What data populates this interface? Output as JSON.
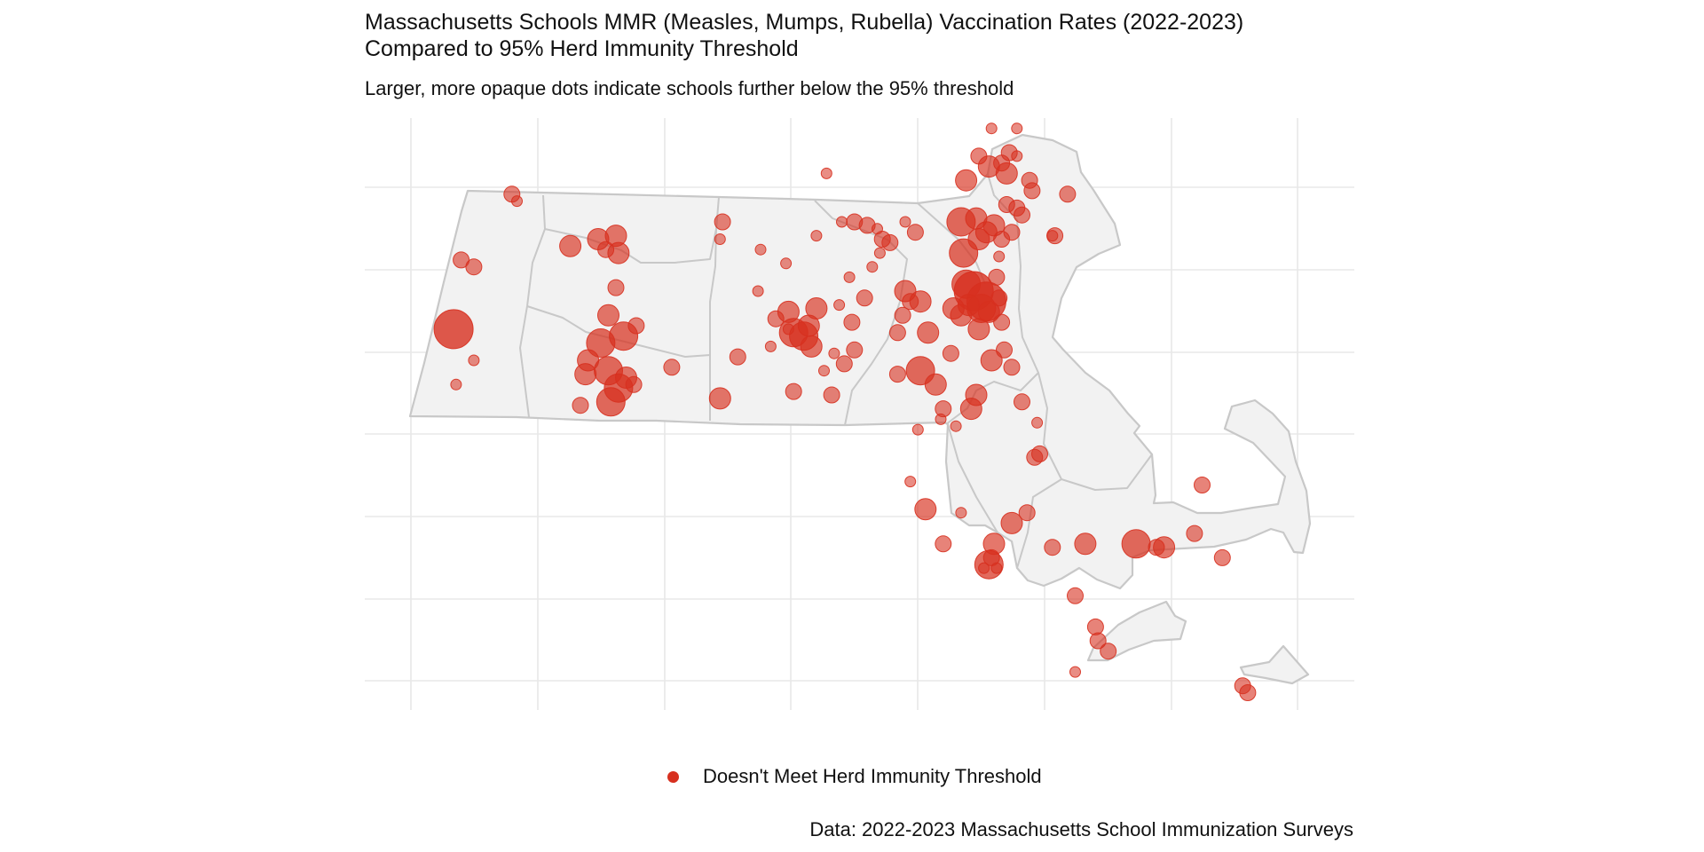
{
  "title": "Massachusetts Schools MMR (Measles, Mumps, Rubella) Vaccination Rates (2022-2023)\nCompared to 95% Herd Immunity Threshold",
  "subtitle": "Larger, more opaque dots indicate schools further below the 95% threshold",
  "caption": "Data: 2022-2023 Massachusetts School Immunization Surveys",
  "colors": {
    "point": "#d7301f",
    "land": "#f2f2f2",
    "border": "#c8c8c8",
    "grid": "#e8e8e8"
  },
  "chart_data": {
    "type": "scatter",
    "description_scope": "School locations (longitude, latitude) over a map of Massachusetts counties",
    "xlim": [
      -73.55,
      -69.65
    ],
    "ylim": [
      41.22,
      42.93
    ],
    "grid": true,
    "axes_labels_shown": false,
    "legend": {
      "position": "bottom",
      "entries": [
        "Doesn't Meet Herd Immunity Threshold"
      ]
    },
    "size_encodes": "distance below 95% threshold (1 = smallest, 5 = largest)",
    "points": [
      [
        -73.2,
        42.32,
        5
      ],
      [
        -73.12,
        42.23,
        1
      ],
      [
        -73.19,
        42.16,
        1
      ],
      [
        -73.17,
        42.52,
        2
      ],
      [
        -73.12,
        42.5,
        2
      ],
      [
        -72.97,
        42.71,
        2
      ],
      [
        -72.95,
        42.69,
        1
      ],
      [
        -72.74,
        42.56,
        3
      ],
      [
        -72.63,
        42.58,
        3
      ],
      [
        -72.56,
        42.59,
        3
      ],
      [
        -72.55,
        42.54,
        3
      ],
      [
        -72.6,
        42.55,
        2
      ],
      [
        -72.56,
        42.44,
        2
      ],
      [
        -72.59,
        42.36,
        3
      ],
      [
        -72.62,
        42.28,
        4
      ],
      [
        -72.53,
        42.3,
        4
      ],
      [
        -72.48,
        42.33,
        2
      ],
      [
        -72.67,
        42.23,
        3
      ],
      [
        -72.68,
        42.19,
        3
      ],
      [
        -72.59,
        42.2,
        4
      ],
      [
        -72.55,
        42.15,
        4
      ],
      [
        -72.52,
        42.18,
        3
      ],
      [
        -72.49,
        42.16,
        2
      ],
      [
        -72.58,
        42.11,
        4
      ],
      [
        -72.7,
        42.1,
        2
      ],
      [
        -72.34,
        42.21,
        2
      ],
      [
        -72.14,
        42.63,
        2
      ],
      [
        -72.15,
        42.58,
        1
      ],
      [
        -71.99,
        42.55,
        1
      ],
      [
        -72.0,
        42.43,
        1
      ],
      [
        -71.89,
        42.51,
        1
      ],
      [
        -72.08,
        42.24,
        2
      ],
      [
        -72.15,
        42.12,
        3
      ],
      [
        -71.95,
        42.27,
        1
      ],
      [
        -71.93,
        42.35,
        2
      ],
      [
        -71.88,
        42.32,
        1
      ],
      [
        -71.88,
        42.37,
        3
      ],
      [
        -71.86,
        42.31,
        4
      ],
      [
        -71.82,
        42.3,
        4
      ],
      [
        -71.8,
        42.33,
        3
      ],
      [
        -71.79,
        42.27,
        3
      ],
      [
        -71.77,
        42.38,
        3
      ],
      [
        -71.86,
        42.14,
        2
      ],
      [
        -71.71,
        42.13,
        2
      ],
      [
        -71.74,
        42.2,
        1
      ],
      [
        -71.7,
        42.25,
        1
      ],
      [
        -71.62,
        42.26,
        2
      ],
      [
        -71.66,
        42.22,
        2
      ],
      [
        -71.63,
        42.34,
        2
      ],
      [
        -71.68,
        42.39,
        1
      ],
      [
        -71.64,
        42.47,
        1
      ],
      [
        -71.58,
        42.41,
        2
      ],
      [
        -71.55,
        42.5,
        1
      ],
      [
        -71.52,
        42.54,
        1
      ],
      [
        -71.57,
        42.62,
        2
      ],
      [
        -71.53,
        42.61,
        1
      ],
      [
        -71.73,
        42.77,
        1
      ],
      [
        -71.77,
        42.59,
        1
      ],
      [
        -71.67,
        42.63,
        1
      ],
      [
        -71.62,
        42.63,
        2
      ],
      [
        -71.51,
        42.58,
        2
      ],
      [
        -71.42,
        42.63,
        1
      ],
      [
        -71.38,
        42.6,
        2
      ],
      [
        -71.48,
        42.57,
        2
      ],
      [
        -71.4,
        42.4,
        2
      ],
      [
        -71.43,
        42.36,
        2
      ],
      [
        -71.42,
        42.43,
        3
      ],
      [
        -71.36,
        42.4,
        3
      ],
      [
        -71.45,
        42.31,
        2
      ],
      [
        -71.33,
        42.31,
        3
      ],
      [
        -71.36,
        42.2,
        4
      ],
      [
        -71.45,
        42.19,
        2
      ],
      [
        -71.3,
        42.16,
        3
      ],
      [
        -71.24,
        42.25,
        2
      ],
      [
        -71.27,
        42.09,
        2
      ],
      [
        -71.28,
        42.06,
        1
      ],
      [
        -71.22,
        42.04,
        1
      ],
      [
        -71.37,
        42.03,
        1
      ],
      [
        -71.4,
        41.88,
        1
      ],
      [
        -71.34,
        41.8,
        3
      ],
      [
        -71.2,
        41.79,
        1
      ],
      [
        -71.27,
        41.7,
        2
      ],
      [
        -71.08,
        41.66,
        2
      ],
      [
        -71.07,
        41.7,
        3
      ],
      [
        -71.09,
        41.64,
        4
      ],
      [
        -71.11,
        41.63,
        1
      ],
      [
        -71.06,
        41.63,
        1
      ],
      [
        -71.0,
        41.76,
        3
      ],
      [
        -70.94,
        41.79,
        2
      ],
      [
        -70.84,
        41.69,
        2
      ],
      [
        -70.71,
        41.7,
        3
      ],
      [
        -70.51,
        41.7,
        4
      ],
      [
        -70.43,
        41.69,
        2
      ],
      [
        -70.4,
        41.69,
        3
      ],
      [
        -70.28,
        41.73,
        2
      ],
      [
        -70.25,
        41.87,
        2
      ],
      [
        -70.17,
        41.66,
        2
      ],
      [
        -70.75,
        41.55,
        2
      ],
      [
        -70.67,
        41.46,
        2
      ],
      [
        -70.66,
        41.42,
        2
      ],
      [
        -70.62,
        41.39,
        2
      ],
      [
        -70.75,
        41.33,
        1
      ],
      [
        -70.09,
        41.29,
        2
      ],
      [
        -70.07,
        41.27,
        2
      ],
      [
        -70.91,
        41.95,
        2
      ],
      [
        -70.89,
        41.96,
        2
      ],
      [
        -70.9,
        42.05,
        1
      ],
      [
        -70.96,
        42.11,
        2
      ],
      [
        -71.0,
        42.21,
        2
      ],
      [
        -71.03,
        42.26,
        2
      ],
      [
        -71.08,
        42.23,
        3
      ],
      [
        -71.14,
        42.13,
        3
      ],
      [
        -71.16,
        42.09,
        3
      ],
      [
        -71.04,
        42.34,
        2
      ],
      [
        -71.09,
        42.37,
        3
      ],
      [
        -71.05,
        42.41,
        2
      ],
      [
        -71.18,
        42.45,
        4
      ],
      [
        -71.15,
        42.43,
        5
      ],
      [
        -71.1,
        42.4,
        5
      ],
      [
        -71.12,
        42.38,
        4
      ],
      [
        -71.17,
        42.39,
        3
      ],
      [
        -71.2,
        42.36,
        3
      ],
      [
        -71.23,
        42.38,
        3
      ],
      [
        -71.13,
        42.32,
        3
      ],
      [
        -71.06,
        42.47,
        2
      ],
      [
        -71.05,
        42.53,
        1
      ],
      [
        -71.19,
        42.54,
        4
      ],
      [
        -71.2,
        42.63,
        4
      ],
      [
        -71.14,
        42.64,
        3
      ],
      [
        -71.1,
        42.6,
        3
      ],
      [
        -71.07,
        42.62,
        3
      ],
      [
        -71.13,
        42.58,
        3
      ],
      [
        -71.04,
        42.58,
        2
      ],
      [
        -71.0,
        42.6,
        2
      ],
      [
        -70.96,
        42.65,
        2
      ],
      [
        -70.98,
        42.67,
        2
      ],
      [
        -71.02,
        42.68,
        2
      ],
      [
        -71.18,
        42.75,
        3
      ],
      [
        -71.13,
        42.82,
        2
      ],
      [
        -71.09,
        42.79,
        3
      ],
      [
        -71.04,
        42.8,
        2
      ],
      [
        -71.02,
        42.77,
        3
      ],
      [
        -71.01,
        42.83,
        2
      ],
      [
        -70.98,
        42.82,
        1
      ],
      [
        -70.98,
        42.9,
        1
      ],
      [
        -71.08,
        42.9,
        1
      ],
      [
        -70.93,
        42.75,
        2
      ],
      [
        -70.92,
        42.72,
        2
      ],
      [
        -70.83,
        42.59,
        2
      ],
      [
        -70.84,
        42.59,
        1
      ],
      [
        -70.78,
        42.71,
        2
      ]
    ]
  }
}
